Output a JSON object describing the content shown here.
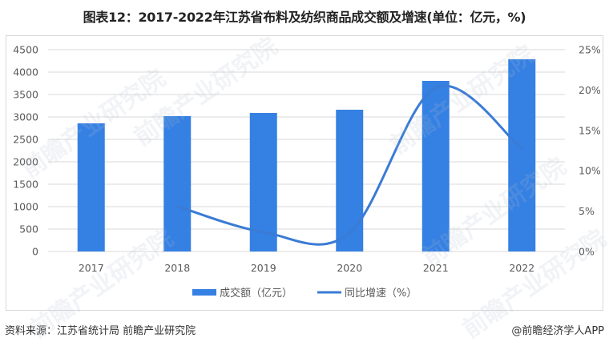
{
  "title": "图表12：2017-2022年江苏省布料及纺织商品成交额及增速(单位：亿元，%)",
  "footer": {
    "source": "资料来源：江苏省统计局 前瞻产业研究院",
    "brand": "@前瞻经济学人APP"
  },
  "watermark": "前瞻产业研究院",
  "colors": {
    "bar": "#3580E3",
    "line": "#3A7BD5",
    "grid": "#d9d9d9",
    "axis_text": "#595959"
  },
  "chart_data": {
    "type": "bar+line",
    "title": "图表12：2017-2022年江苏省布料及纺织商品成交额及增速(单位：亿元，%)",
    "categories": [
      "2017",
      "2018",
      "2019",
      "2020",
      "2021",
      "2022"
    ],
    "series": [
      {
        "name": "成交额（亿元）",
        "type": "bar",
        "axis": "left",
        "values": [
          2857,
          3018,
          3089,
          3161,
          3804,
          4286
        ]
      },
      {
        "name": "同比增速（%）",
        "type": "line",
        "smooth": true,
        "axis": "right",
        "values": [
          null,
          5.6,
          2.4,
          2.3,
          20.3,
          12.7
        ]
      }
    ],
    "left_axis": {
      "min": 0,
      "max": 4500,
      "step": 500,
      "ticks": [
        "0",
        "500",
        "1000",
        "1500",
        "2000",
        "2500",
        "3000",
        "3500",
        "4000",
        "4500"
      ]
    },
    "right_axis": {
      "min": 0,
      "max": 25,
      "step": 5,
      "ticks": [
        "0%",
        "5%",
        "10%",
        "15%",
        "20%",
        "25%"
      ]
    },
    "grid": true,
    "legend_position": "bottom",
    "legend": [
      "成交额（亿元）",
      "同比增速（%）"
    ]
  }
}
